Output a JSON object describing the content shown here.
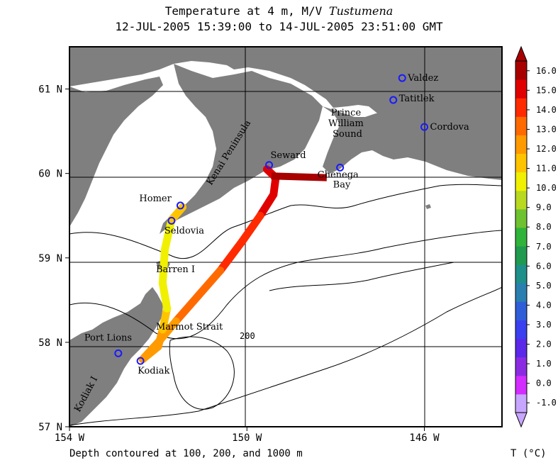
{
  "title": {
    "prefix": "Temperature at 4 m, M/V ",
    "vessel": "Tustumena",
    "range": "12-JUL-2005 15:39:00 to 14-JUL-2005 23:51:00 GMT"
  },
  "footer": "Depth contoured at 100, 200, and 1000 m",
  "colorbar": {
    "label": "T (°C)",
    "ticks": [
      "16.0",
      "15.0",
      "14.0",
      "13.0",
      "12.0",
      "11.0",
      "10.0",
      "9.0",
      "8.0",
      "7.0",
      "6.0",
      "5.0",
      "4.0",
      "3.0",
      "2.0",
      "1.0",
      "0.0",
      "-1.0"
    ],
    "colors": [
      "#c7a6ff",
      "#d22cff",
      "#8a2be2",
      "#5b28ea",
      "#3a3ff0",
      "#2f5ed8",
      "#2a7fb0",
      "#1f8f8a",
      "#1f9a4f",
      "#2fb33a",
      "#6ec22f",
      "#b9d820",
      "#f0f000",
      "#ffc400",
      "#ff9a00",
      "#ff6a00",
      "#ff2a00",
      "#e00000",
      "#a80000"
    ]
  },
  "axes": {
    "lon_ticks": [
      "154 W",
      "150 W",
      "146 W"
    ],
    "lat_ticks": [
      "61 N",
      "60 N",
      "59 N",
      "58 N",
      "57 N"
    ],
    "lon_range": [
      -154,
      -144.25
    ],
    "lat_range": [
      57,
      61.5
    ]
  },
  "places": [
    {
      "name": "Valdez",
      "lon": -146.5,
      "lat": 61.13
    },
    {
      "name": "Tatitlek",
      "lon": -146.7,
      "lat": 60.87
    },
    {
      "name": "Cordova",
      "lon": -146.0,
      "lat": 60.55
    },
    {
      "name": "Seward",
      "lon": -149.5,
      "lat": 60.1
    },
    {
      "name": "Chenega Bay",
      "lon": -147.9,
      "lat": 60.07
    },
    {
      "name": "Homer",
      "lon": -151.5,
      "lat": 59.62
    },
    {
      "name": "Seldovia",
      "lon": -151.7,
      "lat": 59.44
    },
    {
      "name": "Port Lions",
      "lon": -152.9,
      "lat": 57.87
    },
    {
      "name": "Kodiak",
      "lon": -152.4,
      "lat": 57.78
    }
  ],
  "labels": [
    "Prince William Sound",
    "Kenai Peninsula",
    "Barren I",
    "Marmot Strait",
    "Kodiak I",
    "200"
  ],
  "track": [
    {
      "lon": -149.55,
      "lat": 60.05,
      "t": 15.2
    },
    {
      "lon": -149.35,
      "lat": 59.95,
      "t": 15.5
    },
    {
      "lon": -149.4,
      "lat": 59.75,
      "t": 15.0
    },
    {
      "lon": -149.7,
      "lat": 59.5,
      "t": 14.5
    },
    {
      "lon": -150.1,
      "lat": 59.2,
      "t": 14.0
    },
    {
      "lon": -150.6,
      "lat": 58.85,
      "t": 13.6
    },
    {
      "lon": -151.1,
      "lat": 58.55,
      "t": 13.2
    },
    {
      "lon": -151.6,
      "lat": 58.25,
      "t": 12.8
    },
    {
      "lon": -152.0,
      "lat": 58.0,
      "t": 12.6
    },
    {
      "lon": -152.35,
      "lat": 57.8,
      "t": 12.3
    },
    {
      "lon": -152.0,
      "lat": 57.95,
      "t": 12.2
    },
    {
      "lon": -151.9,
      "lat": 58.15,
      "t": 11.6
    },
    {
      "lon": -151.8,
      "lat": 58.4,
      "t": 10.8
    },
    {
      "lon": -151.9,
      "lat": 58.7,
      "t": 10.2
    },
    {
      "lon": -151.85,
      "lat": 59.1,
      "t": 10.0
    },
    {
      "lon": -151.7,
      "lat": 59.45,
      "t": 10.6
    },
    {
      "lon": -151.45,
      "lat": 59.6,
      "t": 11.5
    }
  ]
}
